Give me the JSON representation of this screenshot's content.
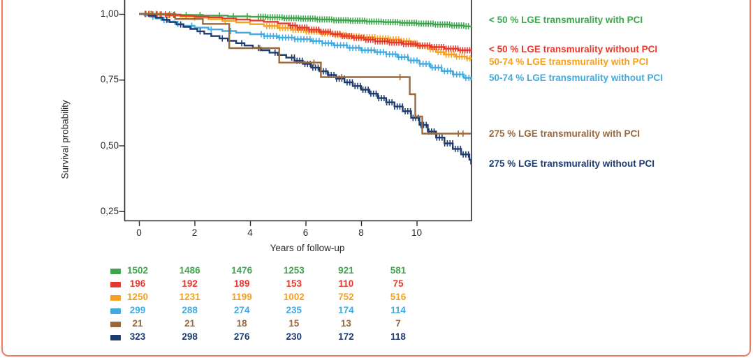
{
  "figure": {
    "border_color": "#EF7C5E",
    "background_color": "#FFFFFF"
  },
  "chart_data": {
    "type": "line",
    "subtype": "kaplan-meier-step-survival",
    "title": "",
    "xlabel": "Years of follow-up",
    "ylabel": "Survival probability",
    "xlim": [
      0,
      12
    ],
    "ylim": [
      0.21,
      1.03
    ],
    "grid": false,
    "legend_position": "right",
    "x_ticks": [
      0,
      2,
      4,
      6,
      8,
      10
    ],
    "x_tick_labels": [
      "0",
      "2",
      "4",
      "6",
      "8",
      "10"
    ],
    "y_ticks": [
      1.0,
      0.75,
      0.5,
      0.25
    ],
    "y_tick_labels": [
      "1,00",
      "0,75",
      "0,50",
      "0,25"
    ],
    "at_risk_time_points": [
      0,
      2,
      4,
      6,
      8,
      10
    ],
    "series": [
      {
        "name": "< 50 % LGE transmurality with PCI",
        "color": "#3DA64B",
        "at_risk": [
          "1502",
          "1486",
          "1476",
          "1253",
          "921",
          "581"
        ],
        "points": [
          [
            0,
            1.0
          ],
          [
            0.7,
            0.998
          ],
          [
            1.5,
            0.996
          ],
          [
            2.3,
            0.994
          ],
          [
            3.2,
            0.991
          ],
          [
            4.0,
            0.989
          ],
          [
            4.6,
            0.987
          ],
          [
            5.2,
            0.984
          ],
          [
            5.8,
            0.982
          ],
          [
            6.4,
            0.979
          ],
          [
            7.0,
            0.976
          ],
          [
            7.6,
            0.974
          ],
          [
            8.2,
            0.971
          ],
          [
            8.8,
            0.969
          ],
          [
            9.4,
            0.966
          ],
          [
            10.0,
            0.963
          ],
          [
            10.6,
            0.96
          ],
          [
            11.2,
            0.956
          ],
          [
            11.7,
            0.953
          ],
          [
            11.96,
            0.951
          ]
        ],
        "censor_years": [
          0.25,
          0.45,
          0.62,
          0.78,
          0.95,
          1.1,
          1.28,
          1.7,
          2.2,
          2.9,
          3.4,
          3.9
        ],
        "censor_ranges": [
          [
            4.3,
            11.94,
            0.085
          ]
        ]
      },
      {
        "name": "< 50 % LGE transmurality without PCI",
        "color": "#E6392E",
        "at_risk": [
          "196",
          "192",
          "189",
          "153",
          "110",
          "75"
        ],
        "points": [
          [
            0,
            1.0
          ],
          [
            0.5,
            0.998
          ],
          [
            1.0,
            0.996
          ],
          [
            1.5,
            0.993
          ],
          [
            2.0,
            0.99
          ],
          [
            2.5,
            0.987
          ],
          [
            3.0,
            0.983
          ],
          [
            3.5,
            0.979
          ],
          [
            4.0,
            0.975
          ],
          [
            4.5,
            0.97
          ],
          [
            5.0,
            0.964
          ],
          [
            5.4,
            0.956
          ],
          [
            5.7,
            0.948
          ],
          [
            6.1,
            0.94
          ],
          [
            6.5,
            0.932
          ],
          [
            6.9,
            0.924
          ],
          [
            7.3,
            0.916
          ],
          [
            7.7,
            0.909
          ],
          [
            8.1,
            0.902
          ],
          [
            8.5,
            0.896
          ],
          [
            9.0,
            0.891
          ],
          [
            9.5,
            0.886
          ],
          [
            10.0,
            0.88
          ],
          [
            10.5,
            0.874
          ],
          [
            11.0,
            0.868
          ],
          [
            11.5,
            0.862
          ],
          [
            11.96,
            0.858
          ]
        ],
        "censor_years": [
          0.22,
          0.35,
          0.5,
          0.65,
          0.8,
          0.95,
          1.1,
          1.25
        ],
        "censor_ranges": [
          [
            5.45,
            11.94,
            0.085
          ]
        ]
      },
      {
        "name": "50-74 % LGE transmurality with PCI",
        "color": "#F5A01E",
        "at_risk": [
          "1250",
          "1231",
          "1199",
          "1002",
          "752",
          "516"
        ],
        "points": [
          [
            0,
            1.0
          ],
          [
            0.5,
            0.997
          ],
          [
            1.0,
            0.994
          ],
          [
            1.5,
            0.99
          ],
          [
            2.0,
            0.986
          ],
          [
            2.5,
            0.98
          ],
          [
            3.0,
            0.974
          ],
          [
            3.5,
            0.968
          ],
          [
            4.0,
            0.961
          ],
          [
            4.5,
            0.954
          ],
          [
            5.0,
            0.947
          ],
          [
            5.5,
            0.94
          ],
          [
            6.0,
            0.933
          ],
          [
            6.5,
            0.926
          ],
          [
            7.0,
            0.92
          ],
          [
            7.5,
            0.915
          ],
          [
            8.0,
            0.911
          ],
          [
            8.5,
            0.907
          ],
          [
            9.0,
            0.903
          ],
          [
            9.4,
            0.897
          ],
          [
            9.8,
            0.888
          ],
          [
            10.1,
            0.878
          ],
          [
            10.4,
            0.866
          ],
          [
            10.7,
            0.855
          ],
          [
            11.0,
            0.846
          ],
          [
            11.4,
            0.838
          ],
          [
            11.8,
            0.831
          ],
          [
            11.96,
            0.828
          ]
        ],
        "censor_years": [
          0.4,
          0.75,
          1.05,
          2.0,
          3.1
        ],
        "censor_ranges": [
          [
            4.6,
            11.94,
            0.095
          ]
        ]
      },
      {
        "name": "50-74 % LGE transmurality without PCI",
        "color": "#41ABE0",
        "at_risk": [
          "299",
          "288",
          "274",
          "235",
          "174",
          "114"
        ],
        "points": [
          [
            0,
            1.0
          ],
          [
            0.2,
            0.995
          ],
          [
            0.4,
            0.989
          ],
          [
            0.6,
            0.983
          ],
          [
            0.8,
            0.977
          ],
          [
            1.0,
            0.971
          ],
          [
            1.3,
            0.962
          ],
          [
            1.6,
            0.955
          ],
          [
            2.0,
            0.948
          ],
          [
            2.5,
            0.941
          ],
          [
            3.0,
            0.935
          ],
          [
            3.5,
            0.929
          ],
          [
            4.0,
            0.923
          ],
          [
            4.5,
            0.916
          ],
          [
            5.0,
            0.91
          ],
          [
            5.6,
            0.904
          ],
          [
            6.2,
            0.897
          ],
          [
            6.6,
            0.889
          ],
          [
            7.0,
            0.881
          ],
          [
            7.5,
            0.871
          ],
          [
            8.0,
            0.862
          ],
          [
            8.5,
            0.855
          ],
          [
            8.9,
            0.847
          ],
          [
            9.3,
            0.836
          ],
          [
            9.7,
            0.823
          ],
          [
            10.1,
            0.81
          ],
          [
            10.5,
            0.796
          ],
          [
            10.9,
            0.783
          ],
          [
            11.3,
            0.77
          ],
          [
            11.7,
            0.757
          ],
          [
            11.96,
            0.748
          ]
        ],
        "censor_years": [
          0.5,
          0.9,
          1.4,
          1.9,
          2.6,
          3.3
        ],
        "censor_ranges": [
          [
            4.4,
            11.94,
            0.11
          ]
        ]
      },
      {
        "name": "275 % LGE transmurality with PCI",
        "color": "#99683C",
        "at_risk": [
          "21",
          "21",
          "18",
          "15",
          "13",
          "7"
        ],
        "points": [
          [
            0,
            1.0
          ],
          [
            1.3,
            0.981
          ],
          [
            2.3,
            0.962
          ],
          [
            3.25,
            0.87
          ],
          [
            5.05,
            0.815
          ],
          [
            6.55,
            0.76
          ],
          [
            9.75,
            0.695
          ],
          [
            9.95,
            0.61
          ],
          [
            10.2,
            0.545
          ],
          [
            11.96,
            0.545
          ]
        ],
        "censor_years": [
          4.35,
          6.3,
          7.3,
          9.4,
          11.5,
          11.67
        ],
        "censor_ranges": []
      },
      {
        "name": "275 % LGE transmurality without PCI",
        "color": "#1E3C6F",
        "at_risk": [
          "323",
          "298",
          "276",
          "230",
          "172",
          "118"
        ],
        "points": [
          [
            0,
            1.0
          ],
          [
            0.35,
            0.993
          ],
          [
            0.6,
            0.986
          ],
          [
            0.85,
            0.978
          ],
          [
            1.1,
            0.969
          ],
          [
            1.35,
            0.96
          ],
          [
            1.6,
            0.951
          ],
          [
            1.85,
            0.943
          ],
          [
            2.1,
            0.934
          ],
          [
            2.35,
            0.925
          ],
          [
            2.6,
            0.916
          ],
          [
            2.9,
            0.907
          ],
          [
            3.2,
            0.898
          ],
          [
            3.5,
            0.889
          ],
          [
            3.8,
            0.88
          ],
          [
            4.1,
            0.871
          ],
          [
            4.4,
            0.862
          ],
          [
            4.7,
            0.853
          ],
          [
            5.0,
            0.844
          ],
          [
            5.3,
            0.834
          ],
          [
            5.6,
            0.822
          ],
          [
            5.9,
            0.81
          ],
          [
            6.2,
            0.796
          ],
          [
            6.5,
            0.782
          ],
          [
            6.8,
            0.768
          ],
          [
            7.1,
            0.754
          ],
          [
            7.4,
            0.74
          ],
          [
            7.7,
            0.726
          ],
          [
            8.0,
            0.712
          ],
          [
            8.3,
            0.697
          ],
          [
            8.6,
            0.68
          ],
          [
            8.9,
            0.664
          ],
          [
            9.2,
            0.648
          ],
          [
            9.5,
            0.63
          ],
          [
            9.8,
            0.605
          ],
          [
            10.1,
            0.578
          ],
          [
            10.4,
            0.553
          ],
          [
            10.7,
            0.53
          ],
          [
            11.0,
            0.508
          ],
          [
            11.3,
            0.487
          ],
          [
            11.6,
            0.466
          ],
          [
            11.9,
            0.446
          ],
          [
            11.96,
            0.428
          ]
        ],
        "censor_years": [
          1.0,
          1.5,
          2.2,
          3.0,
          3.7,
          4.3,
          4.9
        ],
        "censor_ranges": [
          [
            5.5,
            11.94,
            0.095
          ]
        ]
      }
    ]
  }
}
